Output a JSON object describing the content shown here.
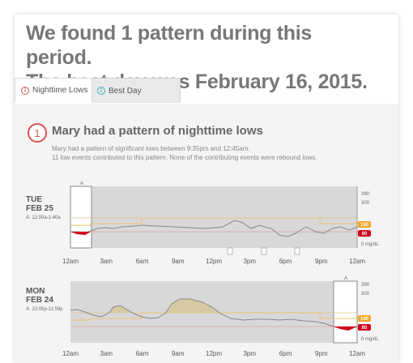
{
  "headline": {
    "line1": "We found 1 pattern during this period.",
    "line2": "The best day was February 16, 2015."
  },
  "tabs": [
    {
      "number": "1",
      "label": "Nighttime Lows"
    },
    {
      "number": "2",
      "label": "Best Day"
    }
  ],
  "pattern": {
    "number": "1",
    "title": "Mary had a pattern of nighttime lows",
    "description_line1": "Mary had a pattern of significant lows between 9:35pm and 12:45am.",
    "description_line2": "11 low events contributed to this pattern. None of the contributing events were rebound lows."
  },
  "axis": {
    "x_ticks": [
      "12am",
      "3am",
      "6am",
      "9am",
      "12pm",
      "3pm",
      "6pm",
      "9pm",
      "12am"
    ],
    "y_ticks": [
      "390",
      "300",
      "140",
      "80",
      "0 mg/dL"
    ],
    "high_threshold": "140",
    "low_threshold": "80"
  },
  "colors": {
    "low_red": "#d0021b",
    "high_orange": "#f5a623",
    "glucose_line": "#888888",
    "shade": "#d5d5d5",
    "high_fill": "#d7c9a4"
  },
  "days": [
    {
      "day": "TUE",
      "date": "FEB 25",
      "event_marker": "A",
      "event_window": "A: 12:00a-1:40a",
      "event_icon": "event-icon"
    },
    {
      "day": "MON",
      "date": "FEB 24",
      "event_marker": "A",
      "event_window": "A: 10:05p-11:59p"
    }
  ]
}
